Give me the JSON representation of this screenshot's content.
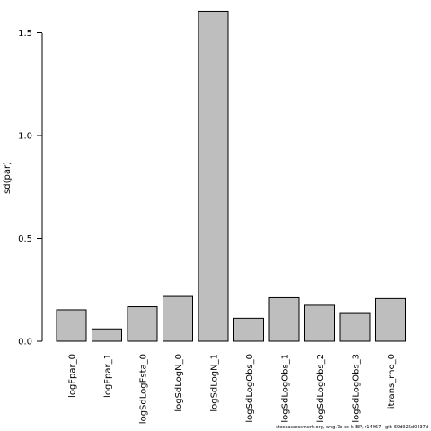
{
  "chart_data": {
    "type": "bar",
    "ylabel": "sd(par)",
    "ylim": [
      0,
      1.6
    ],
    "yticks": [
      "0.0",
      "0.5",
      "1.0",
      "1.5"
    ],
    "ytick_values": [
      0,
      0.5,
      1.0,
      1.5
    ],
    "categories": [
      "logFpar_0",
      "logFpar_1",
      "logSdLogFsta_0",
      "logSdLogN_0",
      "logSdLogN_1",
      "logSdLogObs_0",
      "logSdLogObs_1",
      "logSdLogObs_2",
      "logSdLogObs_3",
      "itrans_rho_0"
    ],
    "values": [
      0.153,
      0.06,
      0.168,
      0.218,
      1.605,
      0.112,
      0.212,
      0.175,
      0.135,
      0.208
    ],
    "bar_fill": "#bebebe",
    "bar_stroke": "#000000",
    "grid": false
  },
  "footnote": "stockassessment.org, whg.7b-ce-k IBP, r14967 , git: 69d926d0437d"
}
